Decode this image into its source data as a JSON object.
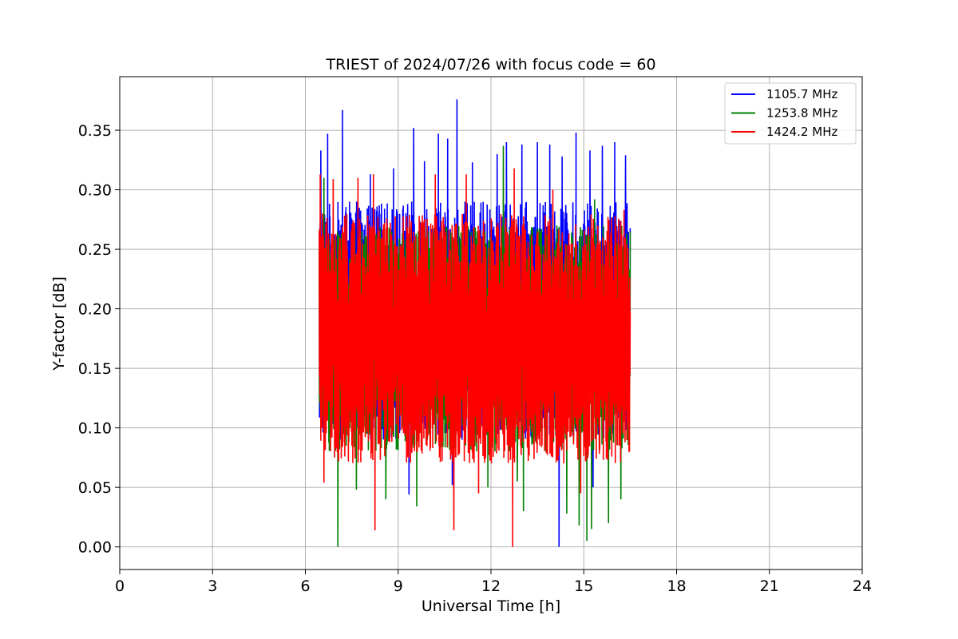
{
  "chart_data": {
    "type": "line",
    "title": "TRIEST of 2024/07/26 with focus code = 60",
    "xlabel": "Universal Time [h]",
    "ylabel": "Y-factor [dB]",
    "xlim": [
      0,
      24
    ],
    "ylim": [
      -0.019,
      0.395
    ],
    "xticks": [
      0,
      3,
      6,
      9,
      12,
      15,
      18,
      21,
      24
    ],
    "xtick_labels": [
      "0",
      "3",
      "6",
      "9",
      "12",
      "15",
      "18",
      "21",
      "24"
    ],
    "yticks": [
      0.0,
      0.05,
      0.1,
      0.15,
      0.2,
      0.25,
      0.3,
      0.35
    ],
    "ytick_labels": [
      "0.00",
      "0.05",
      "0.10",
      "0.15",
      "0.20",
      "0.25",
      "0.30",
      "0.35"
    ],
    "grid": true,
    "legend_position": "top-right",
    "x_range_of_data": [
      6.45,
      16.5
    ],
    "series": [
      {
        "name": "1105.7 MHz",
        "color": "#0000ff",
        "typical_range": [
          0.09,
          0.29
        ],
        "spikes": [
          {
            "x": 6.5,
            "y": 0.333
          },
          {
            "x": 6.72,
            "y": 0.347
          },
          {
            "x": 7.2,
            "y": 0.367
          },
          {
            "x": 8.1,
            "y": 0.313
          },
          {
            "x": 8.85,
            "y": 0.318
          },
          {
            "x": 9.5,
            "y": 0.352
          },
          {
            "x": 9.85,
            "y": 0.324
          },
          {
            "x": 10.3,
            "y": 0.347
          },
          {
            "x": 10.6,
            "y": 0.343
          },
          {
            "x": 10.9,
            "y": 0.376
          },
          {
            "x": 11.4,
            "y": 0.323
          },
          {
            "x": 12.2,
            "y": 0.33
          },
          {
            "x": 12.5,
            "y": 0.34
          },
          {
            "x": 13.0,
            "y": 0.338
          },
          {
            "x": 13.5,
            "y": 0.34
          },
          {
            "x": 13.9,
            "y": 0.338
          },
          {
            "x": 14.3,
            "y": 0.328
          },
          {
            "x": 14.75,
            "y": 0.348
          },
          {
            "x": 15.2,
            "y": 0.333
          },
          {
            "x": 15.6,
            "y": 0.337
          },
          {
            "x": 16.0,
            "y": 0.34
          },
          {
            "x": 16.35,
            "y": 0.329
          },
          {
            "x": 9.35,
            "y": 0.044
          },
          {
            "x": 10.75,
            "y": 0.052
          },
          {
            "x": 14.2,
            "y": 0.0
          },
          {
            "x": 15.3,
            "y": 0.05
          }
        ]
      },
      {
        "name": "1253.8 MHz",
        "color": "#008000",
        "typical_range": [
          0.08,
          0.27
        ],
        "spikes": [
          {
            "x": 6.6,
            "y": 0.31
          },
          {
            "x": 12.4,
            "y": 0.337
          },
          {
            "x": 15.35,
            "y": 0.292
          },
          {
            "x": 7.05,
            "y": 0.0
          },
          {
            "x": 8.6,
            "y": 0.04
          },
          {
            "x": 9.6,
            "y": 0.034
          },
          {
            "x": 11.9,
            "y": 0.05
          },
          {
            "x": 13.05,
            "y": 0.03
          },
          {
            "x": 14.45,
            "y": 0.028
          },
          {
            "x": 14.85,
            "y": 0.018
          },
          {
            "x": 15.1,
            "y": 0.005
          },
          {
            "x": 15.25,
            "y": 0.015
          },
          {
            "x": 15.8,
            "y": 0.02
          },
          {
            "x": 16.2,
            "y": 0.04
          },
          {
            "x": 7.65,
            "y": 0.048
          },
          {
            "x": 12.85,
            "y": 0.055
          }
        ]
      },
      {
        "name": "1424.2 MHz",
        "color": "#ff0000",
        "typical_range": [
          0.07,
          0.28
        ],
        "spikes": [
          {
            "x": 6.48,
            "y": 0.313
          },
          {
            "x": 6.9,
            "y": 0.309
          },
          {
            "x": 7.7,
            "y": 0.31
          },
          {
            "x": 8.2,
            "y": 0.313
          },
          {
            "x": 10.2,
            "y": 0.313
          },
          {
            "x": 11.2,
            "y": 0.313
          },
          {
            "x": 12.75,
            "y": 0.318
          },
          {
            "x": 14.0,
            "y": 0.3
          },
          {
            "x": 16.3,
            "y": 0.283
          },
          {
            "x": 8.25,
            "y": 0.014
          },
          {
            "x": 10.8,
            "y": 0.014
          },
          {
            "x": 12.7,
            "y": 0.0
          },
          {
            "x": 11.6,
            "y": 0.045
          },
          {
            "x": 14.9,
            "y": 0.045
          },
          {
            "x": 6.6,
            "y": 0.054
          }
        ]
      }
    ]
  }
}
